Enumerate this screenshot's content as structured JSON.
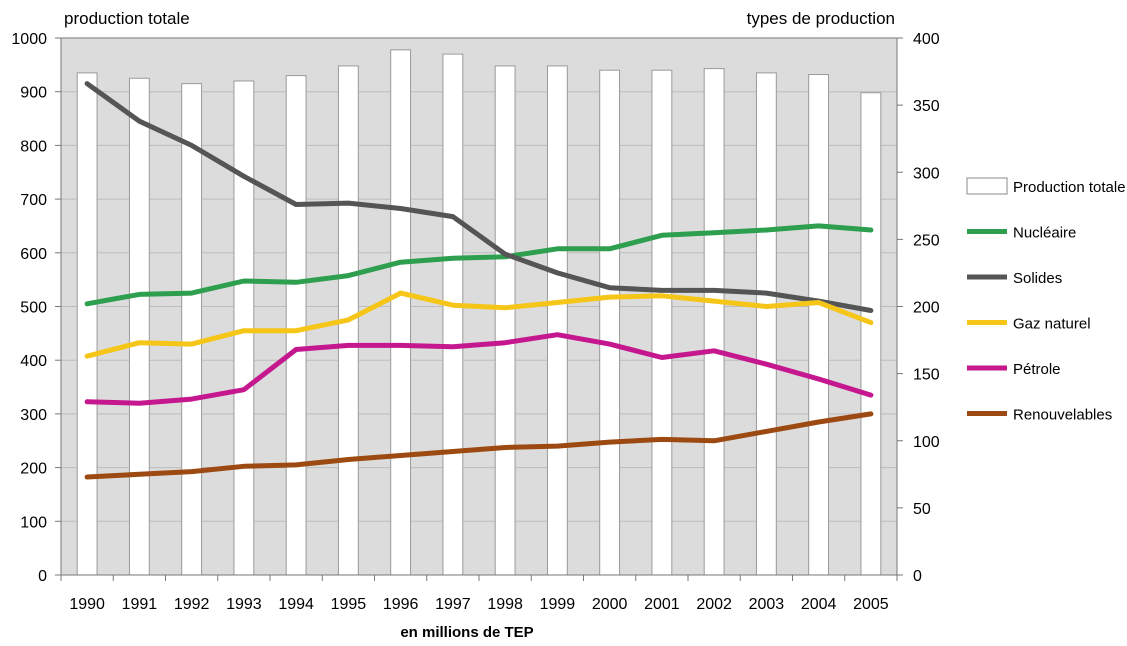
{
  "chart_data": {
    "type": "bar+line",
    "title": "",
    "left_axis_title": "production totale",
    "right_axis_title": "types de production",
    "xlabel": "en millions de TEP",
    "categories": [
      "1990",
      "1991",
      "1992",
      "1993",
      "1994",
      "1995",
      "1996",
      "1997",
      "1998",
      "1999",
      "2000",
      "2001",
      "2002",
      "2003",
      "2004",
      "2005"
    ],
    "ylim_left": [
      0,
      1000
    ],
    "yticks_left": [
      "0",
      "100",
      "200",
      "300",
      "400",
      "500",
      "600",
      "700",
      "800",
      "900",
      "1000"
    ],
    "ylim_right": [
      0,
      400
    ],
    "yticks_right": [
      "0",
      "50",
      "100",
      "150",
      "200",
      "250",
      "300",
      "350",
      "400"
    ],
    "grid": true,
    "legend_position": "right",
    "bars": {
      "name": "Production totale",
      "axis": "left",
      "color": "#ffffff",
      "values": [
        935,
        925,
        915,
        920,
        930,
        948,
        978,
        970,
        948,
        948,
        940,
        940,
        943,
        935,
        932,
        898
      ]
    },
    "series": [
      {
        "name": "Nucléaire",
        "axis": "right",
        "color": "#2e9e4f",
        "values": [
          202,
          209,
          210,
          219,
          218,
          223,
          233,
          236,
          237,
          243,
          243,
          253,
          255,
          257,
          260,
          257
        ]
      },
      {
        "name": "Solides",
        "axis": "right",
        "color": "#555555",
        "values": [
          366,
          338,
          320,
          297,
          276,
          277,
          273,
          267,
          239,
          225,
          214,
          212,
          212,
          210,
          204,
          197
        ]
      },
      {
        "name": "Gaz naturel",
        "axis": "right",
        "color": "#f5c518",
        "values": [
          163,
          173,
          172,
          182,
          182,
          190,
          210,
          201,
          199,
          203,
          207,
          208,
          204,
          200,
          203,
          188
        ]
      },
      {
        "name": "Pétrole",
        "axis": "right",
        "color": "#c5188f",
        "values": [
          129,
          128,
          131,
          138,
          168,
          171,
          171,
          170,
          173,
          179,
          172,
          162,
          167,
          157,
          146,
          134
        ]
      },
      {
        "name": "Renouvelables",
        "axis": "right",
        "color": "#9c4a12",
        "values": [
          73,
          75,
          77,
          81,
          82,
          86,
          89,
          92,
          95,
          96,
          99,
          101,
          100,
          107,
          114,
          120
        ]
      }
    ]
  }
}
